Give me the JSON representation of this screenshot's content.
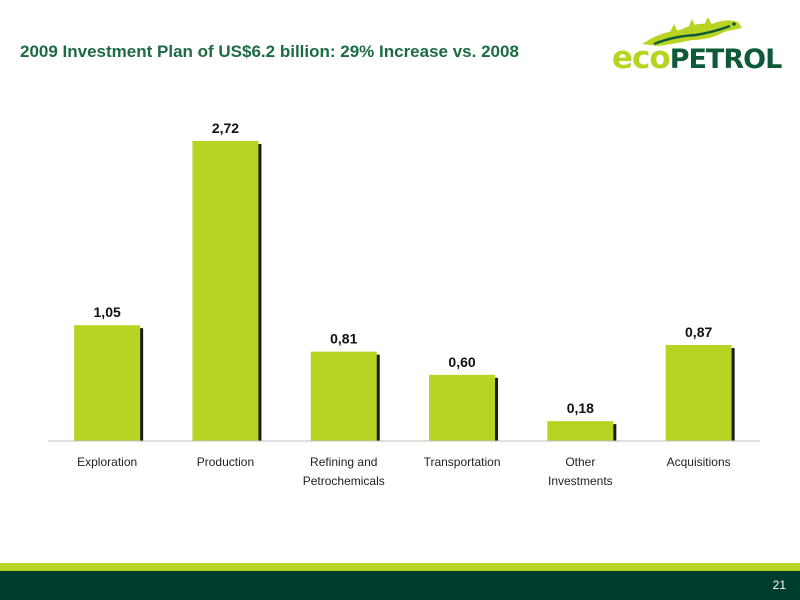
{
  "slide": {
    "title": "2009 Investment Plan of US$6.2 billion: 29% Increase vs. 2008",
    "page_number": "21"
  },
  "logo": {
    "eco": "eco",
    "petrol": "PETROL",
    "eco_color": "#b8d321",
    "petrol_color": "#0e5a38"
  },
  "colors": {
    "bar": "#b8d321",
    "bar_shadow": "#1a1a1a",
    "title": "#1d6b45",
    "footer": "#003d2e",
    "footer_line": "#b8d321"
  },
  "chart_data": {
    "type": "bar",
    "title": "",
    "xlabel": "",
    "ylabel": "",
    "categories": [
      [
        "Exploration"
      ],
      [
        "Production"
      ],
      [
        "Refining and",
        "Petrochemicals"
      ],
      [
        "Transportation"
      ],
      [
        "Other",
        "Investments"
      ],
      [
        "Acquisitions"
      ]
    ],
    "values": [
      1.05,
      2.72,
      0.81,
      0.6,
      0.18,
      0.87
    ],
    "value_labels": [
      "1,05",
      "2,72",
      "0,81",
      "0,60",
      "0,18",
      "0,87"
    ],
    "ylim": [
      0,
      2.72
    ],
    "grid": false,
    "legend": "none"
  }
}
